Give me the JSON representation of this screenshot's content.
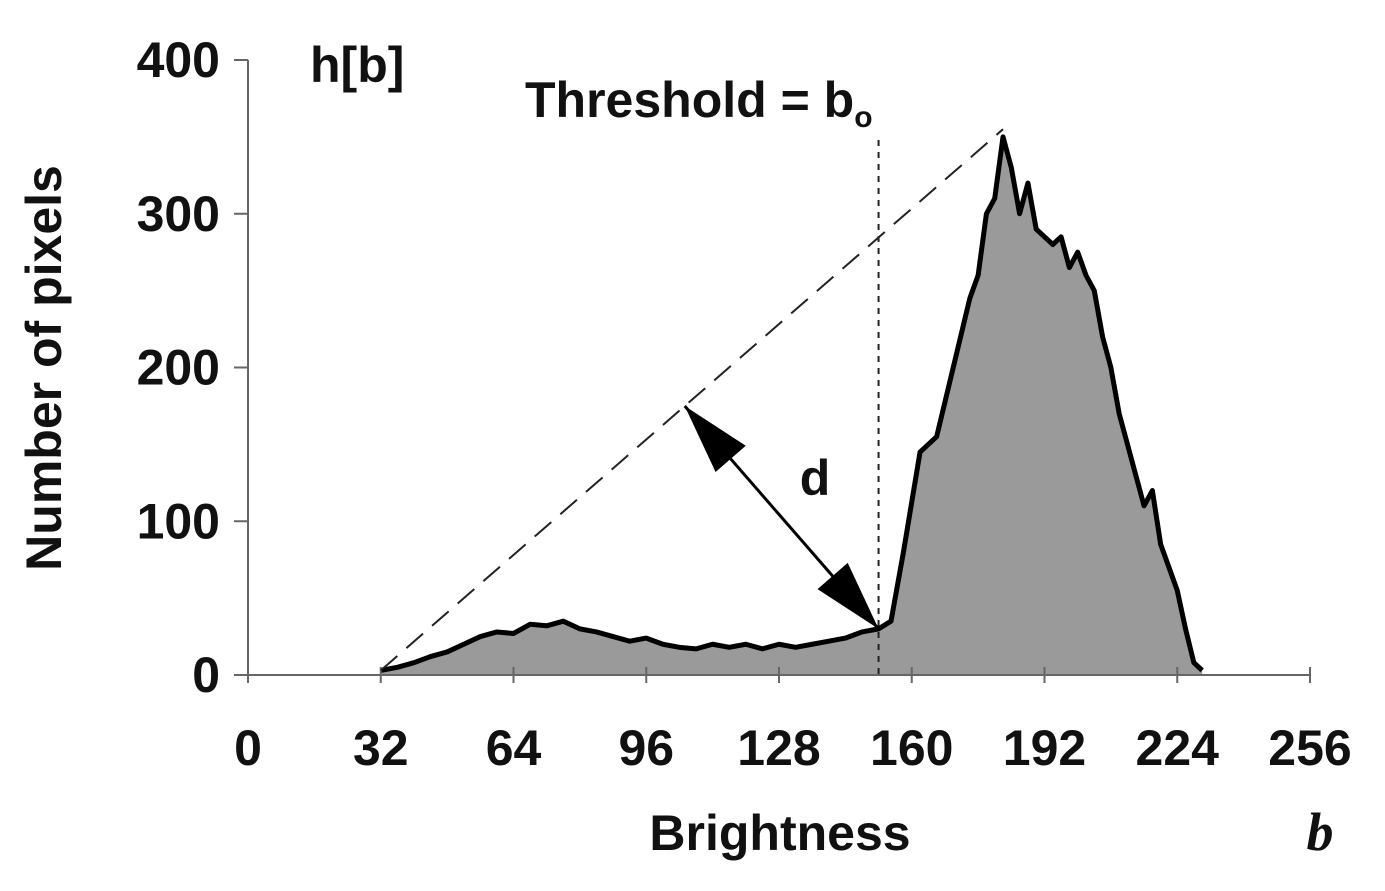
{
  "chart_data": {
    "type": "area",
    "y_label": "Number of pixels",
    "x_label": "Brightness",
    "x_symbol": "b",
    "series_label": "h[b]",
    "threshold_label": "Threshold = b",
    "threshold_subscript": "o",
    "distance_label": "d",
    "threshold": 152,
    "triangle_line": {
      "x": [
        32,
        182
      ],
      "y": [
        3,
        355
      ]
    },
    "color": "#9a9a9a",
    "x": [
      32,
      36,
      40,
      44,
      48,
      52,
      56,
      60,
      64,
      68,
      72,
      76,
      80,
      84,
      88,
      92,
      96,
      100,
      104,
      108,
      112,
      116,
      120,
      124,
      128,
      132,
      136,
      140,
      144,
      148,
      152,
      155,
      158,
      162,
      166,
      170,
      174,
      176,
      178,
      180,
      182,
      184,
      186,
      188,
      190,
      192,
      194,
      196,
      198,
      200,
      202,
      204,
      206,
      208,
      210,
      212,
      214,
      216,
      218,
      220,
      222,
      224,
      226,
      228,
      230
    ],
    "values": [
      3,
      5,
      8,
      12,
      15,
      20,
      25,
      28,
      27,
      33,
      32,
      35,
      30,
      28,
      25,
      22,
      24,
      20,
      18,
      17,
      20,
      18,
      20,
      17,
      20,
      18,
      20,
      22,
      24,
      28,
      30,
      35,
      80,
      145,
      155,
      200,
      245,
      260,
      300,
      310,
      350,
      330,
      300,
      320,
      290,
      285,
      280,
      285,
      265,
      275,
      260,
      250,
      220,
      200,
      170,
      150,
      130,
      110,
      120,
      85,
      70,
      55,
      30,
      8,
      3
    ],
    "xlim": [
      0,
      256
    ],
    "ylim": [
      0,
      400
    ],
    "xticks": [
      0,
      32,
      64,
      96,
      128,
      160,
      192,
      224,
      256
    ],
    "yticks": [
      0,
      100,
      200,
      300,
      400
    ]
  }
}
